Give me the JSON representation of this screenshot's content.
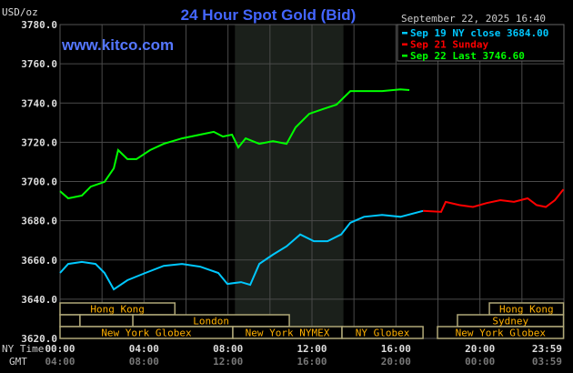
{
  "chart_data": {
    "type": "line",
    "title": "24 Hour Spot Gold (Bid)",
    "watermark": "www.kitco.com",
    "timestamp": "September 22, 2025 16:40",
    "ylabel": "USD/oz",
    "ylim": [
      3620,
      3780
    ],
    "yticks": [
      "3620.0",
      "3640.0",
      "3660.0",
      "3680.0",
      "3700.0",
      "3720.0",
      "3740.0",
      "3760.0",
      "3780.0"
    ],
    "xlim_hours": [
      0,
      24
    ],
    "x_row_labels": {
      "ny": "NY Time",
      "gmt": "GMT"
    },
    "xticks_ny": [
      "00:00",
      "04:00",
      "08:00",
      "12:00",
      "16:00",
      "20:00",
      "23:59"
    ],
    "xticks_gmt": [
      "04:00",
      "08:00",
      "12:00",
      "16:00",
      "20:00",
      "00:00",
      "03:59"
    ],
    "grid": true,
    "shaded_hours": [
      8.33,
      13.5
    ],
    "legend_position": "top-right",
    "series": [
      {
        "name": "Sep 19 NY close 3684.00",
        "color": "#00c8ff",
        "points": [
          [
            0,
            3653.4
          ],
          [
            0.39,
            3658
          ],
          [
            1.04,
            3659
          ],
          [
            1.69,
            3658
          ],
          [
            2.12,
            3653.4
          ],
          [
            2.56,
            3645
          ],
          [
            3.21,
            3649.7
          ],
          [
            4.07,
            3653.4
          ],
          [
            4.94,
            3657
          ],
          [
            5.81,
            3658
          ],
          [
            6.67,
            3656.6
          ],
          [
            7.54,
            3653.4
          ],
          [
            7.97,
            3647.8
          ],
          [
            8.62,
            3648.7
          ],
          [
            9.06,
            3647.3
          ],
          [
            9.49,
            3658
          ],
          [
            10.14,
            3662.7
          ],
          [
            10.79,
            3667
          ],
          [
            11.44,
            3673
          ],
          [
            12.09,
            3669.6
          ],
          [
            12.74,
            3669.6
          ],
          [
            13.39,
            3673
          ],
          [
            13.83,
            3679
          ],
          [
            14.48,
            3682
          ],
          [
            15.34,
            3683
          ],
          [
            16.21,
            3682
          ],
          [
            17.29,
            3685
          ]
        ]
      },
      {
        "name": "Sep 21 Sunday",
        "color": "#ff0000",
        "points": [
          [
            17.29,
            3685
          ],
          [
            18.15,
            3684.5
          ],
          [
            18.37,
            3689.6
          ],
          [
            19.02,
            3688
          ],
          [
            19.67,
            3687
          ],
          [
            20.32,
            3689
          ],
          [
            20.97,
            3690.5
          ],
          [
            21.62,
            3689.6
          ],
          [
            22.27,
            3691.4
          ],
          [
            22.7,
            3688
          ],
          [
            23.14,
            3687
          ],
          [
            23.57,
            3690.5
          ],
          [
            23.98,
            3696
          ]
        ]
      },
      {
        "name": "Sep 22 Last 3746.60",
        "color": "#00ff00",
        "points": [
          [
            0,
            3695.1
          ],
          [
            0.39,
            3691.4
          ],
          [
            1.04,
            3692.8
          ],
          [
            1.47,
            3697.4
          ],
          [
            2.12,
            3699.8
          ],
          [
            2.56,
            3706.7
          ],
          [
            2.77,
            3716
          ],
          [
            3.21,
            3711.4
          ],
          [
            3.64,
            3711.4
          ],
          [
            4.29,
            3716
          ],
          [
            4.94,
            3719.2
          ],
          [
            5.81,
            3722
          ],
          [
            6.67,
            3723.9
          ],
          [
            7.32,
            3725.3
          ],
          [
            7.76,
            3722.9
          ],
          [
            8.19,
            3723.9
          ],
          [
            8.49,
            3717.4
          ],
          [
            8.84,
            3722
          ],
          [
            9.49,
            3719.2
          ],
          [
            10.14,
            3720.6
          ],
          [
            10.79,
            3719.2
          ],
          [
            11.22,
            3727.6
          ],
          [
            11.87,
            3734.5
          ],
          [
            12.52,
            3736.9
          ],
          [
            13.17,
            3739.2
          ],
          [
            13.83,
            3746.1
          ],
          [
            14.48,
            3746.1
          ],
          [
            15.34,
            3746.1
          ],
          [
            16.21,
            3747
          ],
          [
            16.64,
            3746.6
          ]
        ]
      }
    ],
    "sessions": [
      {
        "label": "Hong Kong",
        "row": 0,
        "start": 0,
        "end": 5.47
      },
      {
        "label": "Hong Kong",
        "row": 0,
        "start": 20.45,
        "end": 23.98
      },
      {
        "label": "",
        "row": 1,
        "start": 0,
        "end": 0.95
      },
      {
        "label": "",
        "row": 1,
        "start": 0.95,
        "end": 3.47
      },
      {
        "label": "London",
        "row": 1,
        "start": 3.47,
        "end": 10.92
      },
      {
        "label": "Sydney",
        "row": 1,
        "start": 18.93,
        "end": 23.98
      },
      {
        "label": "New York Globex",
        "row": 2,
        "start": 0,
        "end": 8.23
      },
      {
        "label": "New York NYMEX",
        "row": 2,
        "start": 8.23,
        "end": 13.43
      },
      {
        "label": "NY Globex",
        "row": 2,
        "start": 13.43,
        "end": 17.29
      },
      {
        "label": "New York Globex",
        "row": 2,
        "start": 17.98,
        "end": 23.98
      }
    ]
  }
}
